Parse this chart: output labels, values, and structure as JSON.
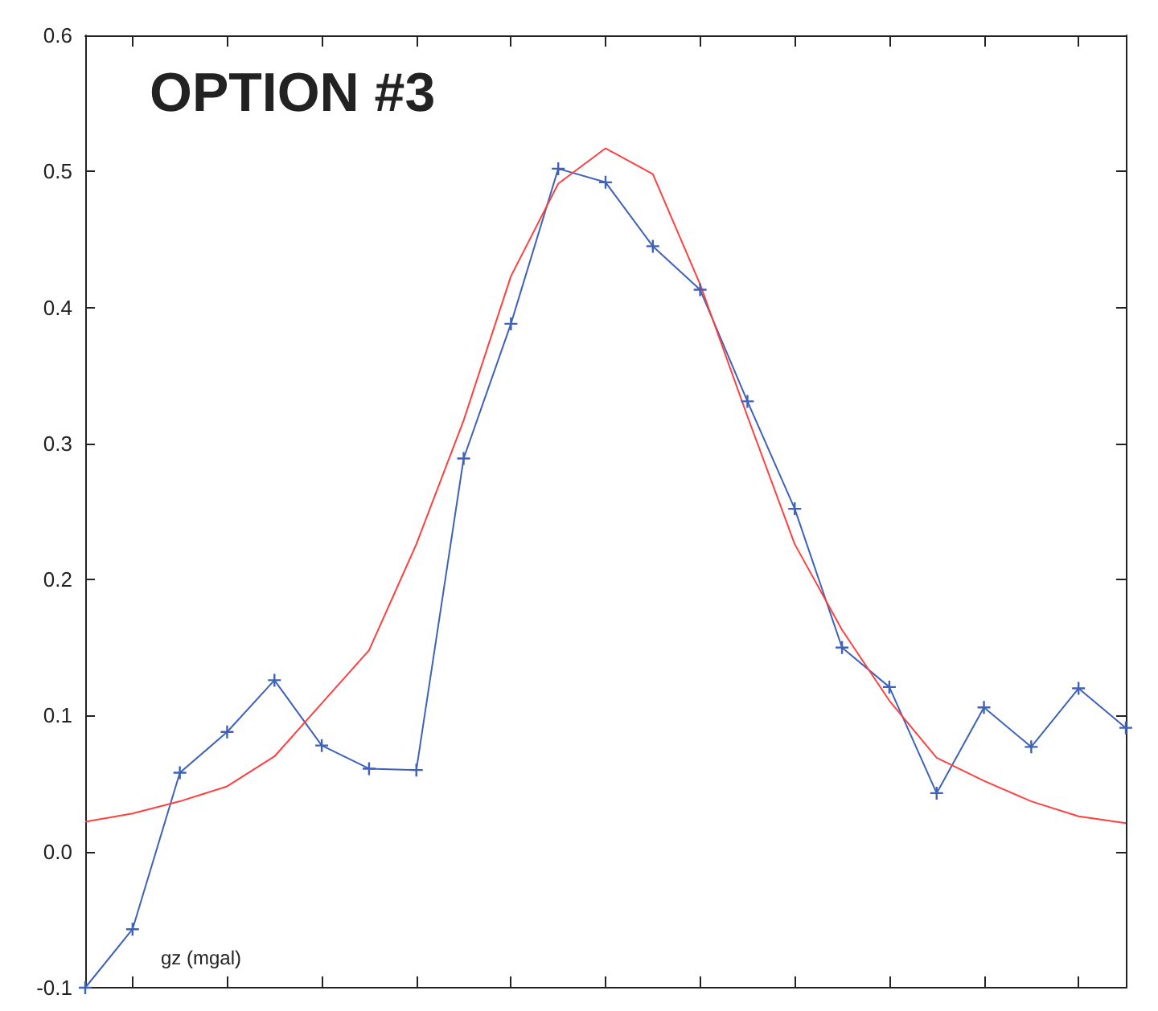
{
  "chart_data": {
    "type": "line",
    "title": "OPTION #3",
    "ylabel": "gz (mgal)",
    "categories": [
      null,
      null,
      null,
      null,
      null,
      null,
      null,
      null,
      null,
      null,
      null,
      null,
      null,
      null,
      null,
      null,
      null,
      null,
      null,
      null,
      null,
      null,
      null
    ],
    "series": [
      {
        "color": "#3d62b8",
        "marker": "cross",
        "values": [
          -0.1,
          -0.057,
          0.058,
          0.088,
          0.126,
          0.078,
          0.061,
          0.06,
          0.289,
          0.388,
          0.502,
          0.492,
          0.445,
          0.413,
          0.331,
          0.252,
          0.15,
          0.121,
          0.043,
          0.106,
          0.077,
          0.12,
          0.091
        ]
      },
      {
        "color": "#ff4040",
        "marker": "none",
        "values": [
          0.022,
          0.028,
          0.037,
          0.048,
          0.07,
          0.109,
          0.148,
          0.226,
          0.317,
          0.423,
          0.491,
          0.517,
          0.498,
          0.417,
          0.32,
          0.226,
          0.163,
          0.111,
          0.069,
          0.052,
          0.037,
          0.026,
          0.021
        ]
      }
    ],
    "ylim": [
      -0.1,
      0.6
    ],
    "yticks": [
      -0.1,
      {
        "value": 0,
        "label": "0.0"
      },
      0.1,
      0.2,
      0.3,
      0.4,
      0.5,
      0.6
    ],
    "tick_labels": "y",
    "grid": false,
    "line_style": "solid"
  }
}
